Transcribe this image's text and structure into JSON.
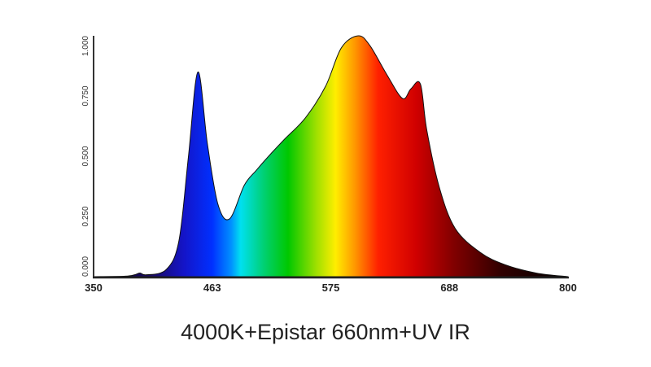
{
  "chart_data": {
    "type": "area",
    "title": "4000K+Epistar 660nm+UV IR",
    "xlabel": "",
    "ylabel": "",
    "xlim": [
      350,
      800
    ],
    "ylim": [
      0,
      1
    ],
    "x_ticks": [
      "350",
      "463",
      "575",
      "688",
      "800"
    ],
    "y_ticks": [
      "0.000",
      "0.250",
      "0.500",
      "0.750",
      "1.000"
    ],
    "grid": false,
    "fill": "visible-spectrum gradient (blue to red to dark red)",
    "x": [
      350,
      380,
      389,
      394,
      400,
      419,
      431,
      440,
      449,
      458,
      468,
      479,
      493,
      504,
      516,
      531,
      551,
      570,
      585,
      601,
      612,
      628,
      643,
      651,
      660,
      666,
      678,
      693,
      717,
      740,
      770,
      800
    ],
    "y": [
      0,
      0.002,
      0.008,
      0.015,
      0.008,
      0.03,
      0.15,
      0.5,
      0.85,
      0.55,
      0.3,
      0.24,
      0.38,
      0.44,
      0.5,
      0.57,
      0.66,
      0.79,
      0.95,
      1.0,
      0.96,
      0.84,
      0.74,
      0.78,
      0.8,
      0.61,
      0.37,
      0.2,
      0.1,
      0.05,
      0.015,
      0
    ]
  }
}
